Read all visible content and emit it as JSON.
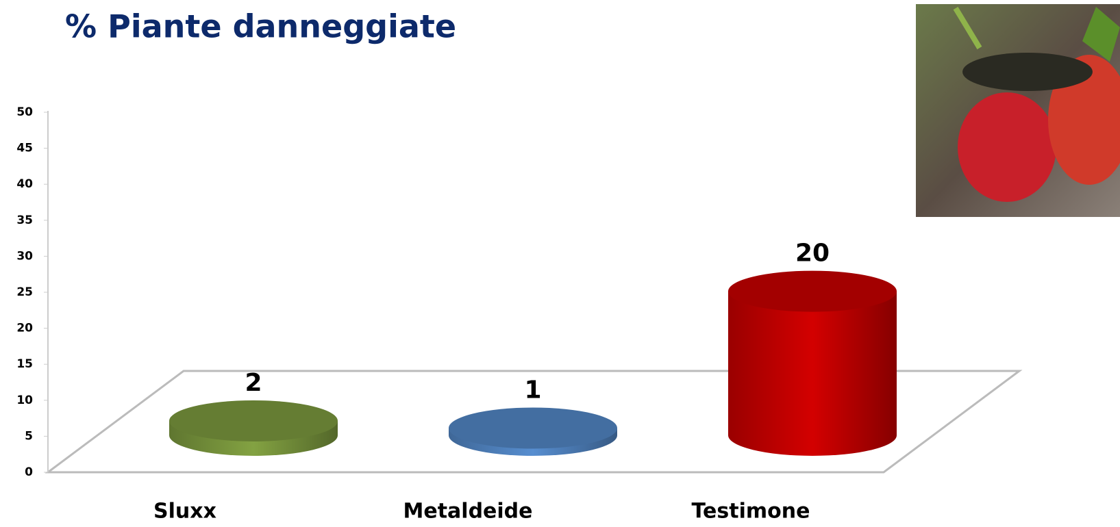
{
  "chart_data": {
    "type": "bar",
    "title": "% Piante danneggiate",
    "categories": [
      "Sluxx",
      "Metaldeide",
      "Testimone"
    ],
    "values": [
      2,
      1,
      20
    ],
    "colors": [
      "#77933c",
      "#4f81bd",
      "#c00000"
    ],
    "ylim": [
      0,
      50
    ],
    "yticks": [
      0,
      5,
      10,
      15,
      20,
      25,
      30,
      35,
      40,
      45,
      50
    ],
    "grid": false
  }
}
